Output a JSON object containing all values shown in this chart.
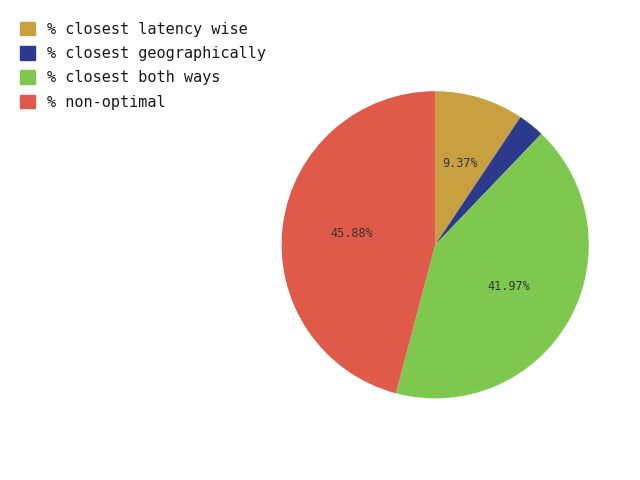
{
  "labels": [
    "% closest latency wise",
    "% closest geographically",
    "% closest both ways",
    "% non-optimal"
  ],
  "values": [
    9.37,
    2.78,
    41.97,
    45.88
  ],
  "colors": [
    "#c8a040",
    "#2b3a8c",
    "#7ec850",
    "#e05a4a"
  ],
  "background_color_left": "#ffffff",
  "background_color_right": "#ebebeb",
  "legend_fontsize": 11,
  "autopct_fontsize": 8.5,
  "pctdistance": 0.55
}
